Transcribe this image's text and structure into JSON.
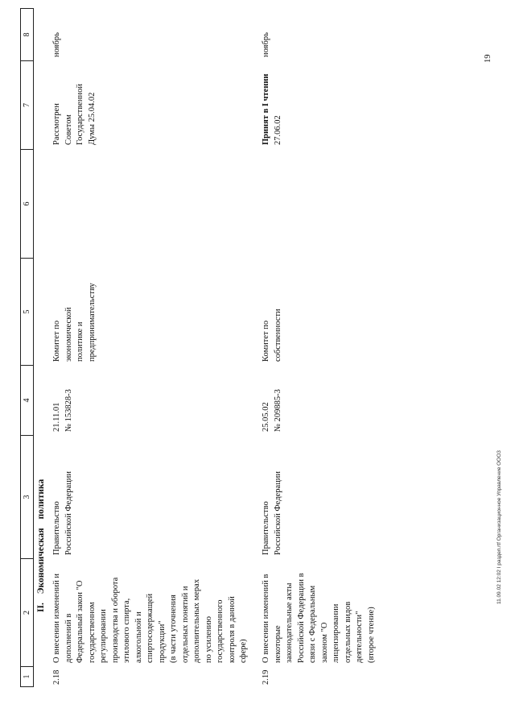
{
  "header_columns": [
    "1",
    "2",
    "3",
    "4",
    "5",
    "6",
    "7",
    "8"
  ],
  "section_title": "II. Экономическая политика",
  "rows": [
    {
      "number": "2.18",
      "title_lines": [
        "О внесении изменений и",
        "дополнений в",
        "Федеральный закон \"О",
        "государственном",
        "регулировании",
        "производства и оборота",
        "этилового спирта,",
        "алкогольной и",
        "спиртосодержащей",
        "продукции\"",
        "(в части уточнения",
        "отдельных понятий и",
        "дополнительных мерах",
        "по усилению",
        "государственного",
        "контроля в данной",
        "сфере)"
      ],
      "initiator_lines": [
        "Правительство",
        "Российской Федерации"
      ],
      "registration_lines": [
        "21.11.01",
        "№ 153828-3"
      ],
      "committee_lines": [
        "Комитет по",
        "экономической",
        "политике и",
        "предпринимательству"
      ],
      "status_lines": [
        "Рассмотрен",
        "Советом",
        "Государственной",
        "Думы 25.04.02"
      ],
      "month": "ноябрь"
    },
    {
      "number": "2.19",
      "title_lines": [
        "О внесении изменений в",
        "некоторые",
        "законодательные акты",
        "Российской Федерации в",
        "связи с Федеральным",
        "законом \"О",
        "лицензировании",
        "отдельных видов",
        "деятельности\"",
        "(второе чтение)"
      ],
      "initiator_lines": [
        "Правительство",
        "Российской Федерации"
      ],
      "registration_lines": [
        "25.05.02",
        "№ 209885-3"
      ],
      "committee_lines": [
        "Комитет по",
        "собственности"
      ],
      "status_lines": [
        "Принят в I чтении",
        "27.06.02"
      ],
      "month": "ноябрь"
    }
  ],
  "page_number": "19",
  "footer": "11.09.02 12:02 I раздел.rtf  Организационное Управление ООО3"
}
